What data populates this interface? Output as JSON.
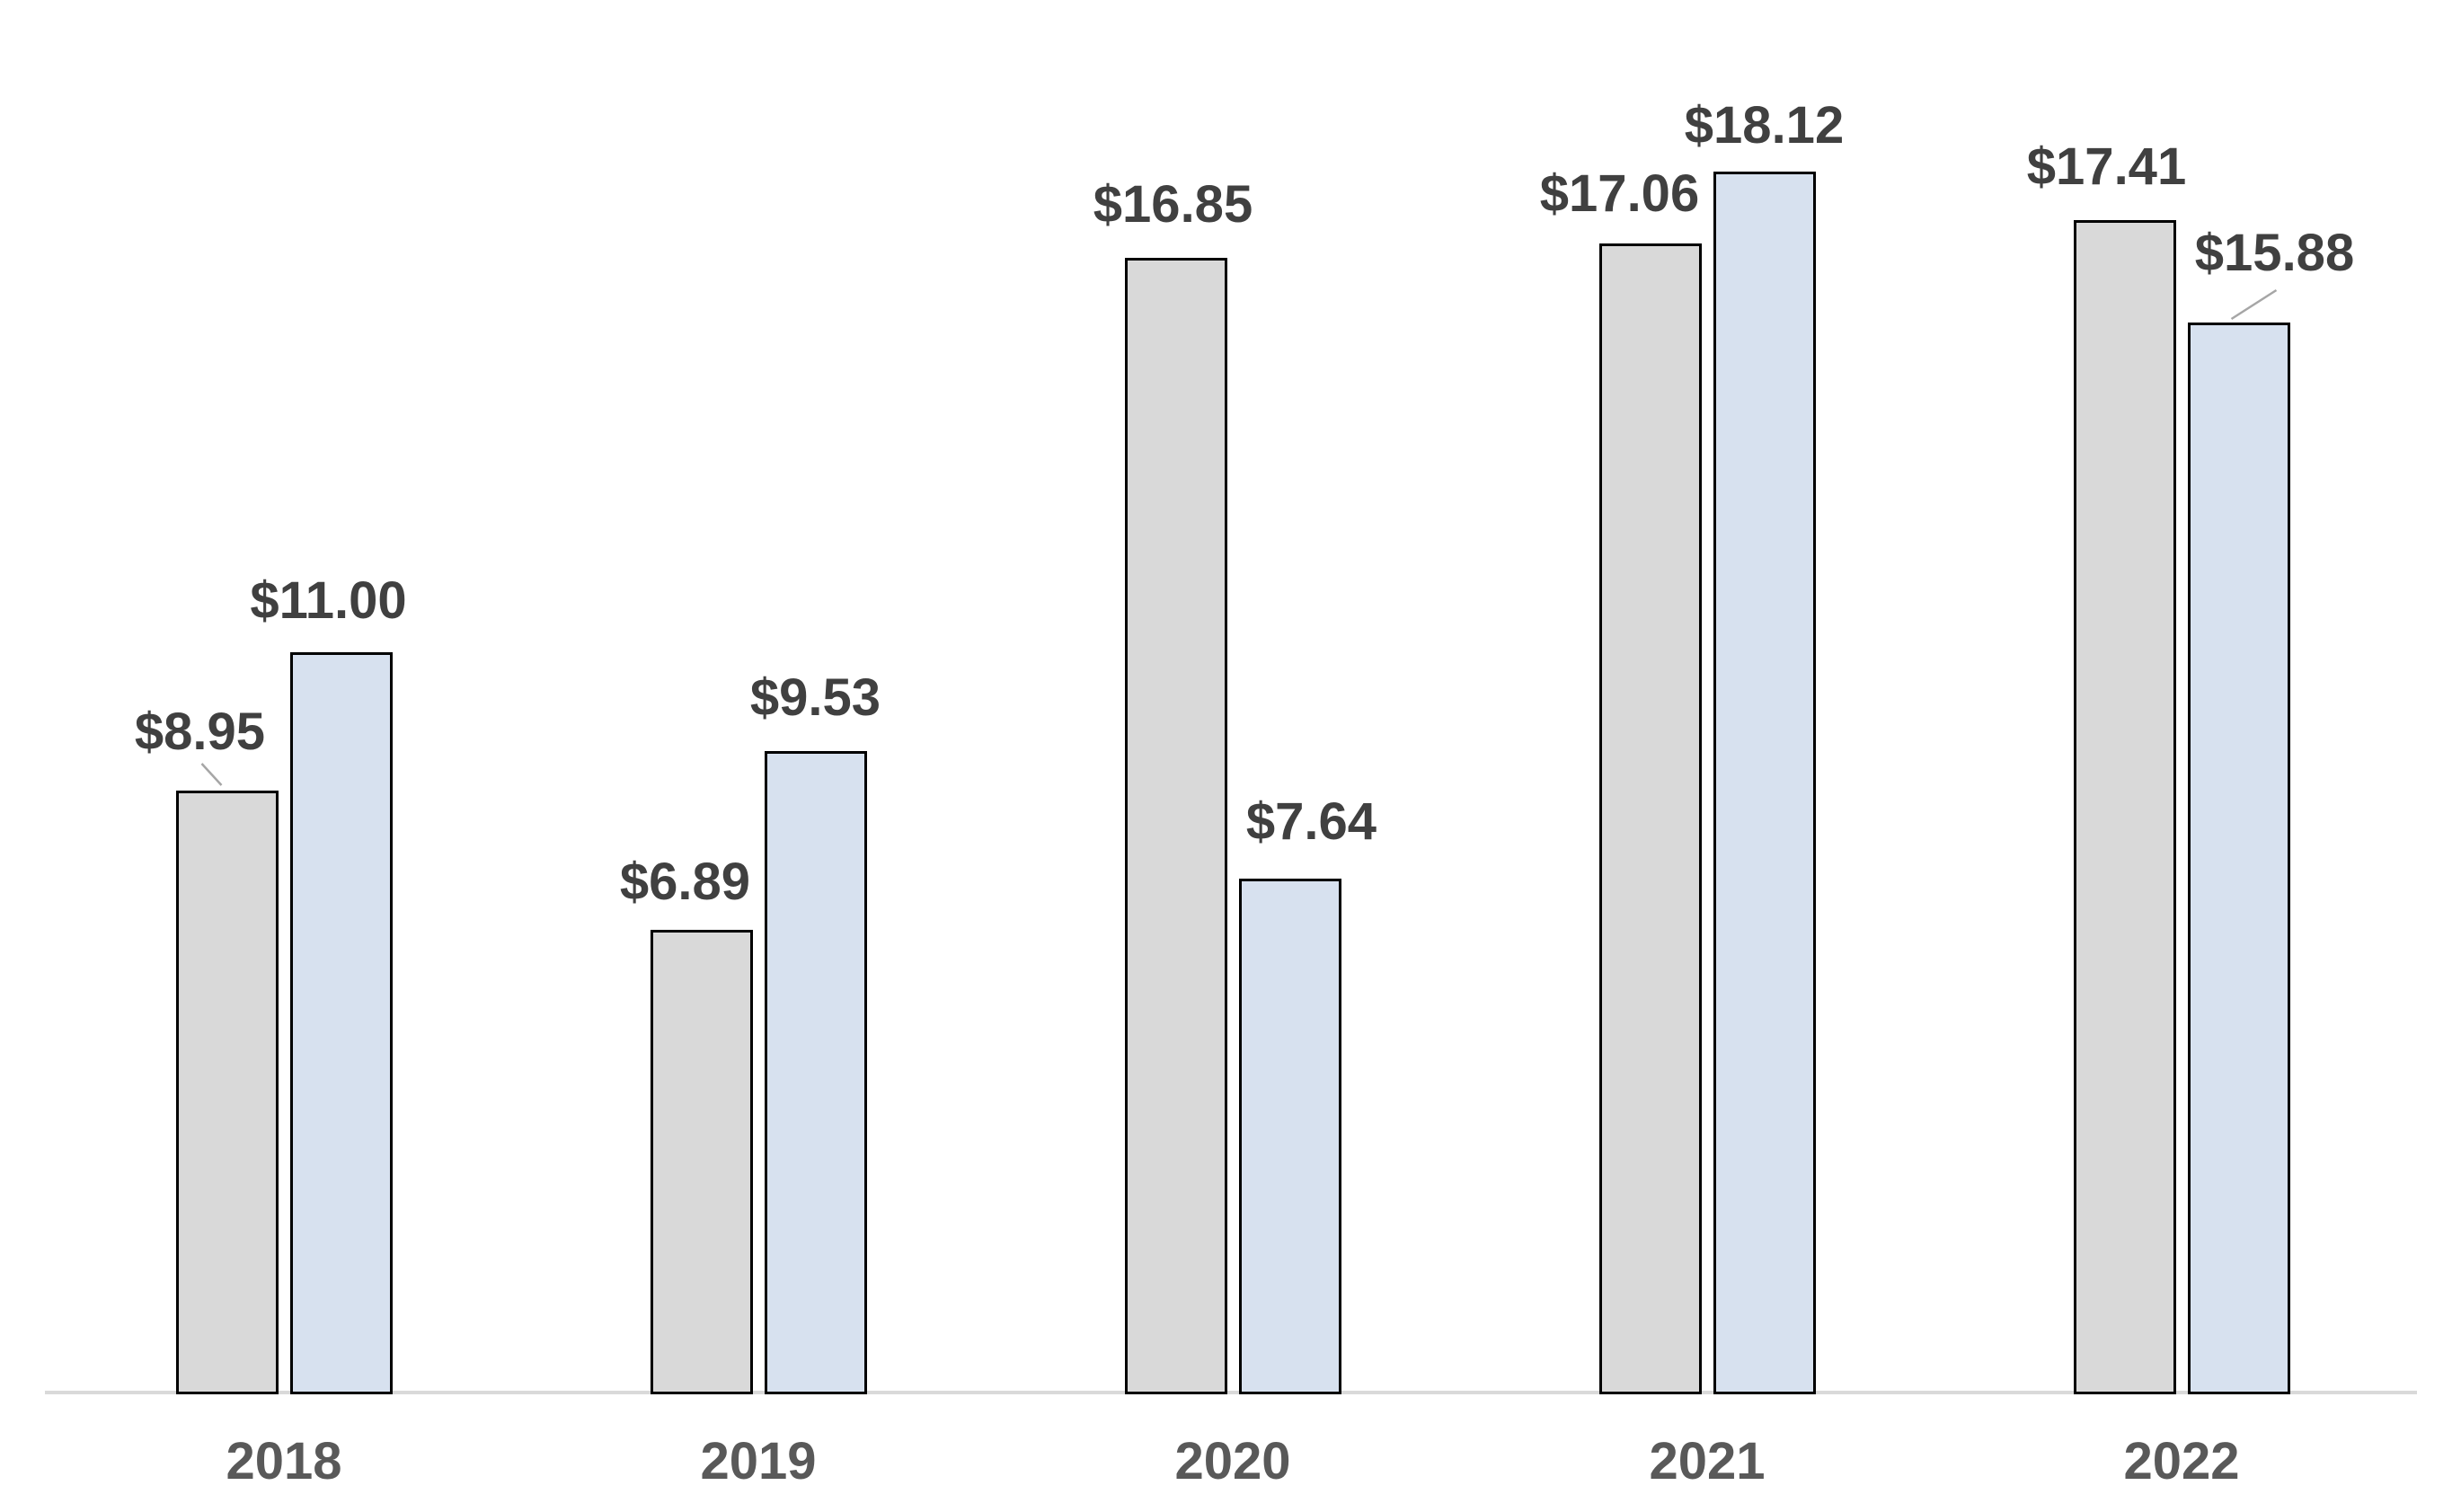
{
  "chart_data": {
    "type": "bar",
    "title": "",
    "categories": [
      "2018",
      "2019",
      "2020",
      "2021",
      "2022"
    ],
    "series": [
      {
        "name": "gray",
        "fill_color": "#D9D9D9",
        "border_color": "#000000",
        "values": [
          8.95,
          6.89,
          16.85,
          17.06,
          17.41
        ],
        "data_labels": [
          "$8.95",
          "$6.89",
          "$16.85",
          "$17.06",
          "$17.41"
        ]
      },
      {
        "name": "blue",
        "fill_color": "#D7E1EF",
        "border_color": "#000000",
        "values": [
          11.0,
          9.53,
          7.64,
          18.12,
          15.88
        ],
        "data_labels": [
          "$11.00",
          "$9.53",
          "$7.64",
          "$18.12",
          "$15.88"
        ]
      }
    ],
    "value_prefix": "$",
    "ylim": [
      0,
      19
    ],
    "grid": false,
    "legend": false,
    "y_axis_visible": false,
    "style": {
      "background_color": "#FFFFFF",
      "data_label_color": "#404040",
      "category_label_color": "#595959",
      "axis_line_color": "#D9D9D9",
      "leader_line_color": "#A6A6A6"
    }
  }
}
